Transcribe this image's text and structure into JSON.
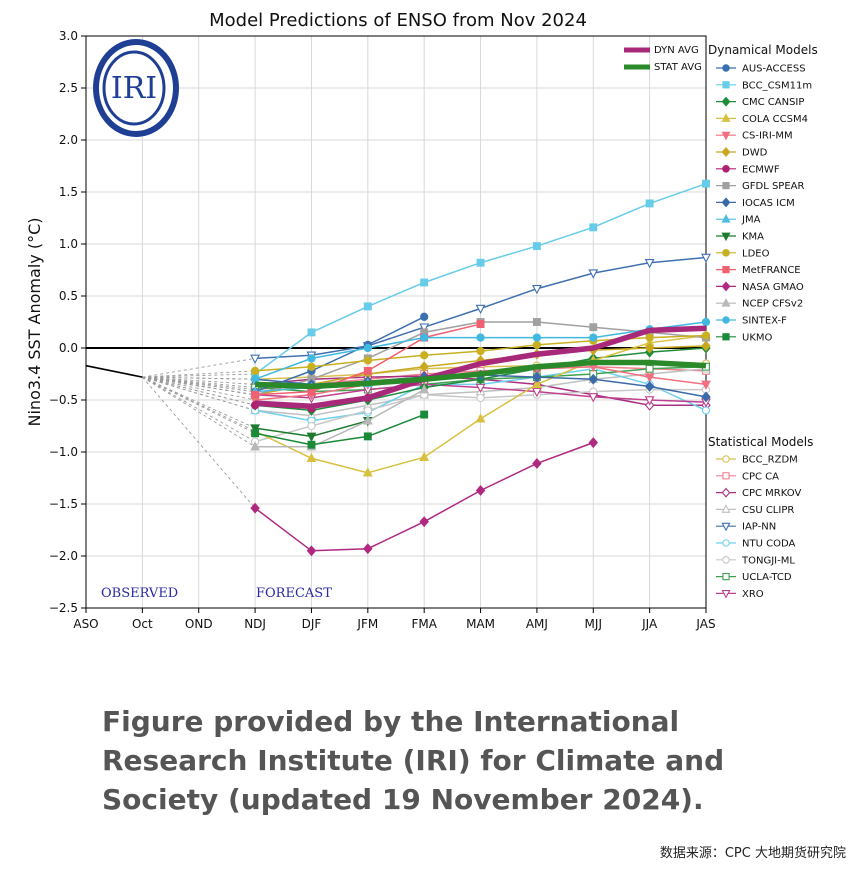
{
  "caption": "Figure provided by the International Research Institute (IRI) for Climate and Society (updated 19 November 2024).",
  "source": "数据来源：CPC  大地期货研究院",
  "logo_text": "IRI",
  "chart_data": {
    "type": "line",
    "title": "Model Predictions of ENSO from Nov 2024",
    "ylabel": "Nino3.4 SST Anomaly (°C)",
    "xlabel": "",
    "categories": [
      "ASO",
      "Oct",
      "OND",
      "NDJ",
      "DJF",
      "JFM",
      "FMA",
      "MAM",
      "AMJ",
      "MJJ",
      "JJA",
      "JAS"
    ],
    "ylim": [
      -2.5,
      3.0
    ],
    "yticks": [
      "3.0",
      "2.5",
      "2.0",
      "1.5",
      "1.0",
      "0.5",
      "0.0",
      "−0.5",
      "−1.0",
      "−1.5",
      "−2.0",
      "−2.5"
    ],
    "grid": true,
    "annotations": {
      "observed": "OBSERVED",
      "forecast": "FORECAST"
    },
    "observed": [
      -0.17,
      -0.28
    ],
    "avg_legend": [
      "DYN AVG",
      "STAT AVG"
    ],
    "avg_series": [
      {
        "name": "DYN AVG",
        "color": "#a8287a",
        "values": [
          null,
          -0.28,
          null,
          -0.53,
          -0.56,
          -0.48,
          -0.3,
          -0.15,
          -0.06,
          0.0,
          0.17,
          0.19
        ]
      },
      {
        "name": "STAT AVG",
        "color": "#2a8a2a",
        "values": [
          null,
          -0.28,
          null,
          -0.35,
          -0.37,
          -0.34,
          -0.3,
          -0.25,
          -0.18,
          -0.14,
          -0.14,
          -0.17
        ]
      }
    ],
    "dynamical_heading": "Dynamical Models",
    "statistical_heading": "Statistical Models",
    "dynamical": [
      {
        "name": "AUS-ACCESS",
        "color": "#3a70b0",
        "marker": "circle",
        "values": [
          null,
          -0.28,
          null,
          -0.42,
          -0.22,
          0.03,
          0.3,
          null,
          null,
          null,
          null,
          null
        ]
      },
      {
        "name": "BCC_CSM11m",
        "color": "#66cce8",
        "marker": "square",
        "values": [
          null,
          -0.28,
          null,
          -0.25,
          0.15,
          0.4,
          0.63,
          0.82,
          0.98,
          1.16,
          1.39,
          1.58
        ]
      },
      {
        "name": "CMC CANSIP",
        "color": "#1e8c3a",
        "marker": "diamond",
        "values": [
          null,
          -0.28,
          null,
          -0.55,
          -0.6,
          -0.5,
          -0.38,
          -0.3,
          -0.2,
          -0.1,
          -0.04,
          0.0
        ]
      },
      {
        "name": "COLA CCSM4",
        "color": "#d8c040",
        "marker": "triangle-up",
        "values": [
          null,
          -0.28,
          null,
          -0.8,
          -1.06,
          -1.2,
          -1.05,
          -0.68,
          -0.35,
          -0.12,
          0.05,
          0.12
        ]
      },
      {
        "name": "CS-IRI-MM",
        "color": "#f07080",
        "marker": "triangle-down",
        "values": [
          null,
          -0.28,
          null,
          -0.5,
          -0.45,
          -0.35,
          -0.3,
          -0.25,
          -0.2,
          -0.18,
          -0.28,
          -0.35
        ]
      },
      {
        "name": "DWD",
        "color": "#c8a820",
        "marker": "diamond",
        "values": [
          null,
          -0.28,
          null,
          -0.45,
          -0.35,
          -0.25,
          -0.18,
          -0.12,
          -0.06,
          -0.02,
          0.0,
          0.02
        ]
      },
      {
        "name": "ECMWF",
        "color": "#b02070",
        "marker": "circle",
        "values": [
          null,
          -0.28,
          null,
          -0.55,
          -0.58,
          -0.48,
          null,
          null,
          null,
          null,
          null,
          null
        ]
      },
      {
        "name": "GFDL SPEAR",
        "color": "#a0a0a0",
        "marker": "square",
        "values": [
          null,
          -0.28,
          null,
          -0.45,
          -0.3,
          -0.1,
          0.15,
          0.25,
          0.25,
          0.2,
          0.15,
          0.1
        ]
      },
      {
        "name": "IOCAS ICM",
        "color": "#3a6aa8",
        "marker": "diamond",
        "values": [
          null,
          -0.28,
          null,
          -0.3,
          -0.35,
          -0.32,
          -0.28,
          -0.26,
          -0.28,
          -0.3,
          -0.37,
          -0.47
        ]
      },
      {
        "name": "JMA",
        "color": "#50bce0",
        "marker": "triangle-up",
        "values": [
          null,
          -0.28,
          null,
          -0.42,
          -0.38,
          -0.34,
          null,
          null,
          null,
          null,
          null,
          null
        ]
      },
      {
        "name": "KMA",
        "color": "#1e7a2e",
        "marker": "triangle-down",
        "values": [
          null,
          -0.28,
          null,
          -0.77,
          -0.85,
          -0.7,
          null,
          null,
          null,
          null,
          null,
          null
        ]
      },
      {
        "name": "LDEO",
        "color": "#c8b020",
        "marker": "circle",
        "values": [
          null,
          -0.28,
          null,
          -0.22,
          -0.18,
          -0.12,
          -0.07,
          -0.03,
          0.03,
          0.07,
          0.1,
          0.12
        ]
      },
      {
        "name": "MetFRANCE",
        "color": "#f06070",
        "marker": "square",
        "values": [
          null,
          -0.28,
          null,
          -0.45,
          -0.42,
          -0.22,
          0.1,
          0.23,
          null,
          null,
          null,
          null
        ]
      },
      {
        "name": "NASA GMAO",
        "color": "#b02880",
        "marker": "diamond",
        "values": [
          null,
          -0.28,
          null,
          -1.54,
          -1.95,
          -1.93,
          -1.67,
          -1.37,
          -1.11,
          -0.91,
          null,
          null
        ]
      },
      {
        "name": "NCEP CFSv2",
        "color": "#b8b8b8",
        "marker": "triangle-up",
        "values": [
          null,
          -0.28,
          null,
          -0.95,
          -0.95,
          -0.7,
          -0.4,
          null,
          null,
          null,
          null,
          null
        ]
      },
      {
        "name": "SINTEX-F",
        "color": "#40b8e0",
        "marker": "circle",
        "values": [
          null,
          -0.28,
          null,
          -0.3,
          -0.1,
          0.0,
          0.1,
          0.1,
          0.1,
          0.1,
          0.18,
          0.25
        ]
      },
      {
        "name": "UKMO",
        "color": "#1a8a3a",
        "marker": "square",
        "values": [
          null,
          -0.28,
          null,
          -0.82,
          -0.93,
          -0.85,
          -0.64,
          null,
          null,
          null,
          null,
          null
        ]
      }
    ],
    "statistical": [
      {
        "name": "BCC_RZDM",
        "color": "#d8c050",
        "marker": "circle",
        "values": [
          null,
          -0.28,
          null,
          -0.3,
          -0.28,
          -0.25,
          -0.2,
          -0.18,
          -0.17,
          -0.15,
          -0.15,
          -0.15
        ]
      },
      {
        "name": "CPC CA",
        "color": "#f08090",
        "marker": "square",
        "values": [
          null,
          -0.28,
          null,
          -0.4,
          -0.35,
          -0.3,
          -0.25,
          -0.22,
          -0.2,
          -0.18,
          -0.2,
          -0.22
        ]
      },
      {
        "name": "CPC MRKOV",
        "color": "#a83080",
        "marker": "diamond",
        "values": [
          null,
          -0.28,
          null,
          -0.35,
          -0.3,
          -0.28,
          -0.27,
          -0.3,
          -0.35,
          -0.45,
          -0.55,
          -0.55
        ]
      },
      {
        "name": "CSU CLIPR",
        "color": "#c0c0c0",
        "marker": "triangle-up",
        "values": [
          null,
          -0.28,
          null,
          -0.6,
          -0.65,
          -0.55,
          -0.45,
          -0.42,
          -0.38,
          -0.3,
          -0.25,
          -0.2
        ]
      },
      {
        "name": "IAP-NN",
        "color": "#4070b0",
        "marker": "triangle-down",
        "values": [
          null,
          -0.28,
          null,
          -0.1,
          -0.07,
          0.02,
          0.2,
          0.38,
          0.57,
          0.72,
          0.82,
          0.87
        ]
      },
      {
        "name": "NTU CODA",
        "color": "#70d0f0",
        "marker": "circle",
        "values": [
          null,
          -0.28,
          null,
          -0.6,
          -0.7,
          -0.62,
          -0.35,
          -0.35,
          -0.28,
          -0.2,
          -0.35,
          -0.6
        ]
      },
      {
        "name": "TONGJI-ML",
        "color": "#c8c8c8",
        "marker": "circle",
        "values": [
          null,
          -0.28,
          null,
          -0.9,
          -0.75,
          -0.6,
          -0.45,
          -0.48,
          -0.45,
          -0.42,
          -0.4,
          -0.4
        ]
      },
      {
        "name": "UCLA-TCD",
        "color": "#40a050",
        "marker": "square",
        "values": [
          null,
          -0.28,
          null,
          -0.38,
          -0.42,
          -0.4,
          -0.35,
          -0.3,
          -0.28,
          -0.25,
          -0.2,
          -0.18
        ]
      },
      {
        "name": "XRO",
        "color": "#c04090",
        "marker": "triangle-down",
        "values": [
          null,
          -0.28,
          null,
          -0.45,
          -0.48,
          -0.4,
          -0.35,
          -0.38,
          -0.42,
          -0.47,
          -0.5,
          -0.52
        ]
      }
    ]
  }
}
